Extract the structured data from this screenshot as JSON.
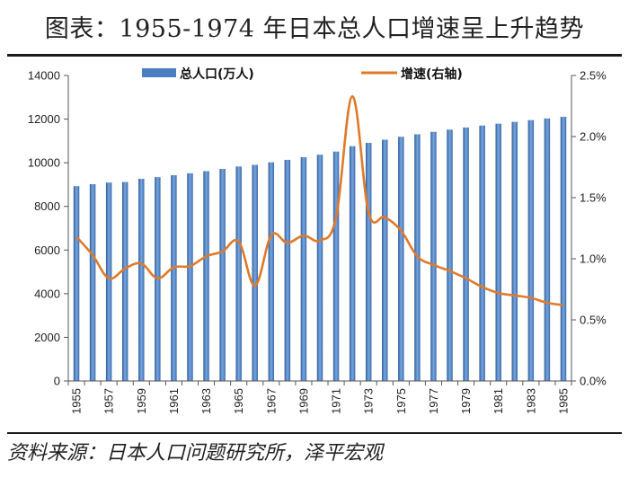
{
  "title": "图表：1955-1974 年日本总人口增速呈上升趋势",
  "source": "资料来源：日本人口问题研究所，泽平宏观",
  "chart_data": {
    "type": "bar+line",
    "categories": [
      "1955",
      "1956",
      "1957",
      "1958",
      "1959",
      "1960",
      "1961",
      "1962",
      "1963",
      "1964",
      "1965",
      "1966",
      "1967",
      "1968",
      "1969",
      "1970",
      "1971",
      "1972",
      "1973",
      "1974",
      "1975",
      "1976",
      "1977",
      "1978",
      "1979",
      "1980",
      "1981",
      "1982",
      "1983",
      "1984",
      "1985"
    ],
    "x_tick_labels": [
      "1955",
      "1957",
      "1959",
      "1961",
      "1963",
      "1965",
      "1967",
      "1969",
      "1971",
      "1973",
      "1975",
      "1977",
      "1979",
      "1981",
      "1983",
      "1985"
    ],
    "series": [
      {
        "name": "总人口(万人)",
        "type": "bar",
        "axis": "left",
        "color": "#4a7fc0",
        "values": [
          8928,
          9017,
          9093,
          9118,
          9264,
          9342,
          9429,
          9518,
          9616,
          9718,
          9828,
          9904,
          10020,
          10133,
          10254,
          10372,
          10514,
          10760,
          10910,
          11057,
          11190,
          11305,
          11417,
          11519,
          11616,
          11706,
          11790,
          11873,
          11954,
          12031,
          12105
        ]
      },
      {
        "name": "增速(右轴)",
        "type": "line",
        "axis": "right",
        "color": "#e07a2a",
        "values": [
          1.18,
          1.03,
          0.84,
          0.92,
          0.96,
          0.84,
          0.93,
          0.94,
          1.02,
          1.06,
          1.14,
          0.78,
          1.19,
          1.13,
          1.19,
          1.15,
          1.34,
          2.33,
          1.38,
          1.34,
          1.23,
          1.02,
          0.95,
          0.9,
          0.84,
          0.77,
          0.72,
          0.7,
          0.68,
          0.64,
          0.62
        ]
      }
    ],
    "y_left": {
      "min": 0,
      "max": 14000,
      "ticks": [
        0,
        2000,
        4000,
        6000,
        8000,
        10000,
        12000,
        14000
      ]
    },
    "y_right": {
      "min": 0,
      "max": 2.5,
      "ticks": [
        "0.0%",
        "0.5%",
        "1.0%",
        "1.5%",
        "2.0%",
        "2.5%"
      ],
      "tick_values": [
        0,
        0.5,
        1.0,
        1.5,
        2.0,
        2.5
      ]
    },
    "legend": {
      "position": "top",
      "bar_label": "总人口(万人)",
      "line_label": "增速(右轴)"
    }
  }
}
